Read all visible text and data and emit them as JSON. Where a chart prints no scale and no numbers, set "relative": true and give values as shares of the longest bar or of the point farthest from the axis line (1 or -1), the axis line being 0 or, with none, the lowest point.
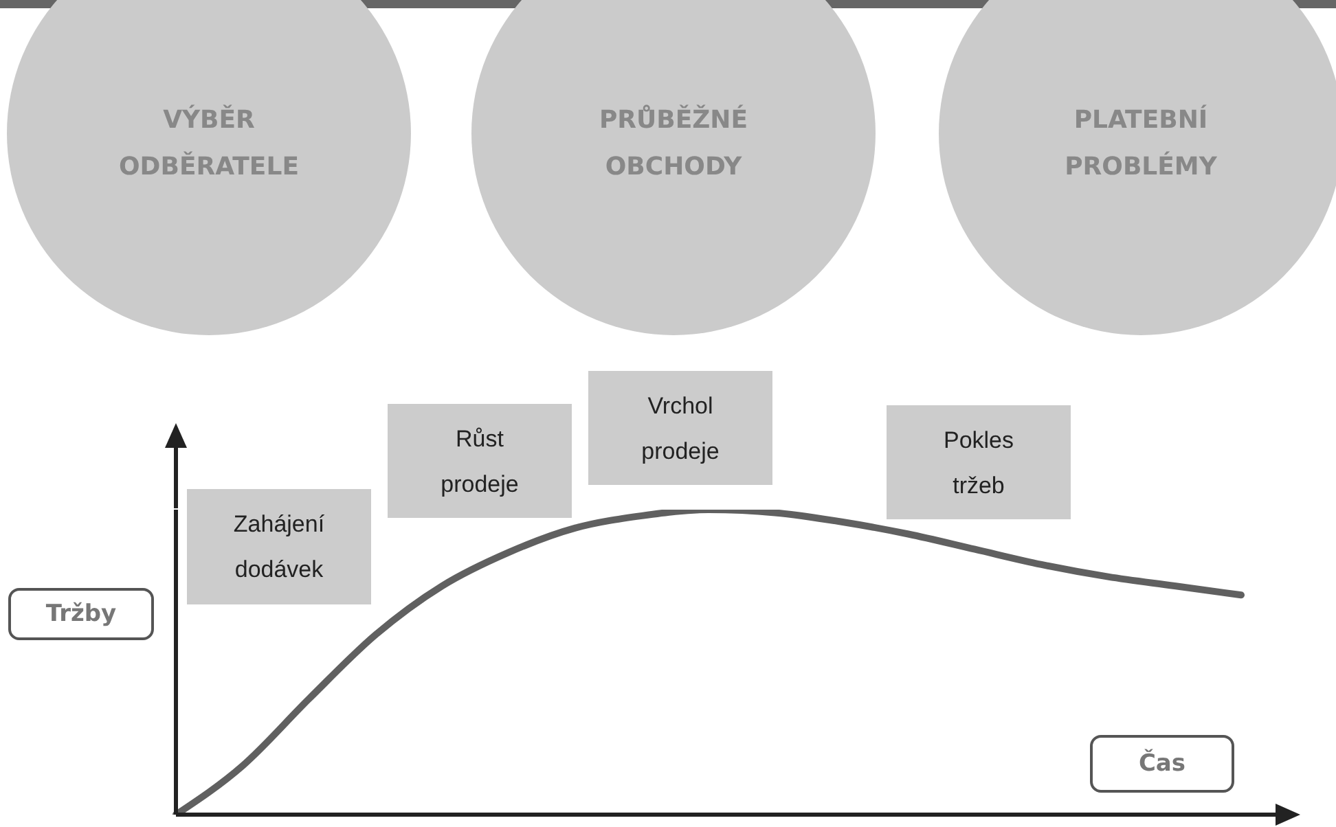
{
  "chart_data": {
    "type": "line",
    "relative": true,
    "xlabel": "Čas",
    "ylabel": "Tržby",
    "categories": [
      null,
      null,
      null,
      null,
      null,
      null,
      null,
      null,
      null,
      null,
      null,
      null,
      null,
      null,
      null,
      null,
      null
    ],
    "series": [
      {
        "color": "#606060",
        "values": [
          0,
          0.16,
          0.38,
          0.59,
          0.75,
          0.86,
          0.94,
          0.98,
          1,
          0.99,
          0.96,
          0.92,
          0.87,
          0.82,
          0.78,
          0.75,
          0.72
        ]
      }
    ],
    "annotations": [
      "VÝBĚR\nODBĚRATELE",
      "PRŮBĚŽNÉ\nOBCHODY",
      "PLATEBNÍ\nPROBLÉMY",
      "Zahájení\ndodávek",
      "Růst\nprodeje",
      "Vrchol\nprodeje",
      "Pokles\ntržeb"
    ]
  }
}
